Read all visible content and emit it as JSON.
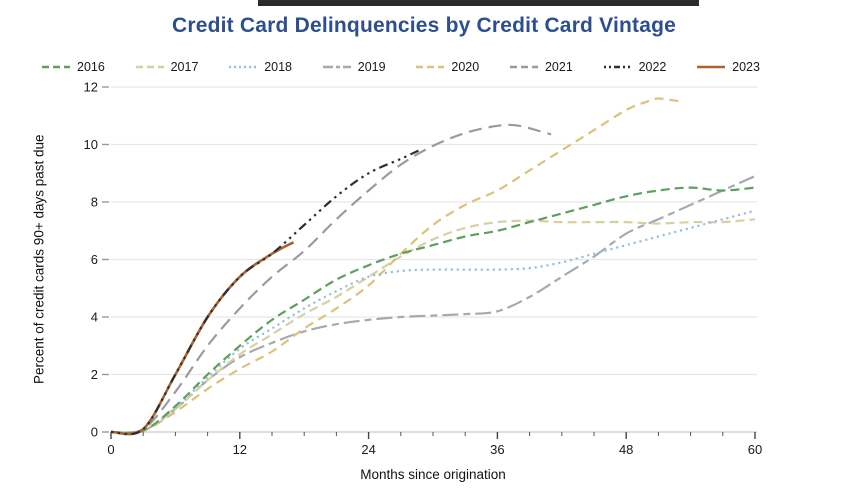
{
  "page": {
    "top_bar_color": "#2b2b2b",
    "background_color": "#ffffff",
    "title_color": "#2d4e8f"
  },
  "chart_data": {
    "type": "line",
    "title": "Credit Card Delinquencies by Credit Card Vintage",
    "xlabel": "Months since origination",
    "ylabel": "Percent of credit cards 90+ days past due",
    "xlim": [
      0,
      60
    ],
    "ylim": [
      0,
      12
    ],
    "x_ticks": [
      0,
      12,
      24,
      36,
      48,
      60
    ],
    "x_minor_tick_step": 3,
    "y_ticks": [
      0,
      2,
      4,
      6,
      8,
      10,
      12
    ],
    "grid": "horizontal",
    "gridline_color": "#e7e7e7",
    "axis_line_color": "#c9c9c9",
    "tick_color": "#555555",
    "tick_label_color": "#1a1a1a",
    "legend_position": "top",
    "paint_order": [
      "2019",
      "2017",
      "2020",
      "2018",
      "2016",
      "2021",
      "2023",
      "2022"
    ],
    "series": [
      {
        "name": "2016",
        "color": "#5da05d",
        "dash": "9 5",
        "width": 2.2,
        "legend_dash": "7 4",
        "points": [
          [
            0,
            0
          ],
          [
            3,
            0.05
          ],
          [
            6,
            0.9
          ],
          [
            9,
            2.0
          ],
          [
            12,
            3.0
          ],
          [
            15,
            3.9
          ],
          [
            18,
            4.6
          ],
          [
            21,
            5.3
          ],
          [
            24,
            5.8
          ],
          [
            27,
            6.2
          ],
          [
            30,
            6.5
          ],
          [
            33,
            6.8
          ],
          [
            36,
            7.0
          ],
          [
            39,
            7.3
          ],
          [
            42,
            7.6
          ],
          [
            45,
            7.9
          ],
          [
            48,
            8.2
          ],
          [
            51,
            8.4
          ],
          [
            54,
            8.5
          ],
          [
            57,
            8.4
          ],
          [
            60,
            8.5
          ]
        ]
      },
      {
        "name": "2017",
        "color": "#d8d09e",
        "dash": "9 5",
        "width": 2.2,
        "legend_dash": "7 4",
        "points": [
          [
            0,
            0
          ],
          [
            3,
            0.05
          ],
          [
            6,
            0.8
          ],
          [
            9,
            1.8
          ],
          [
            12,
            2.7
          ],
          [
            15,
            3.4
          ],
          [
            18,
            4.1
          ],
          [
            21,
            4.7
          ],
          [
            24,
            5.4
          ],
          [
            27,
            6.1
          ],
          [
            30,
            6.7
          ],
          [
            33,
            7.1
          ],
          [
            36,
            7.3
          ],
          [
            39,
            7.35
          ],
          [
            42,
            7.3
          ],
          [
            45,
            7.3
          ],
          [
            48,
            7.3
          ],
          [
            51,
            7.25
          ],
          [
            54,
            7.3
          ],
          [
            57,
            7.3
          ],
          [
            60,
            7.4
          ]
        ]
      },
      {
        "name": "2018",
        "color": "#94bfdd",
        "dash": "2.2 3.8",
        "width": 2.2,
        "legend_dash": "2 3",
        "points": [
          [
            0,
            0
          ],
          [
            3,
            0.05
          ],
          [
            6,
            0.85
          ],
          [
            9,
            1.9
          ],
          [
            12,
            2.9
          ],
          [
            15,
            3.6
          ],
          [
            18,
            4.3
          ],
          [
            21,
            4.9
          ],
          [
            24,
            5.4
          ],
          [
            27,
            5.6
          ],
          [
            30,
            5.65
          ],
          [
            33,
            5.65
          ],
          [
            36,
            5.65
          ],
          [
            39,
            5.7
          ],
          [
            42,
            5.9
          ],
          [
            45,
            6.2
          ],
          [
            48,
            6.5
          ],
          [
            51,
            6.8
          ],
          [
            54,
            7.1
          ],
          [
            57,
            7.4
          ],
          [
            60,
            7.7
          ]
        ]
      },
      {
        "name": "2019",
        "color": "#a8a8b2",
        "dash": "16 5 7 5",
        "width": 2.2,
        "legend_dash": "10 3 4 3",
        "points": [
          [
            0,
            0
          ],
          [
            3,
            0.05
          ],
          [
            6,
            0.8
          ],
          [
            9,
            1.8
          ],
          [
            12,
            2.6
          ],
          [
            15,
            3.1
          ],
          [
            18,
            3.5
          ],
          [
            21,
            3.75
          ],
          [
            24,
            3.9
          ],
          [
            27,
            4.0
          ],
          [
            30,
            4.05
          ],
          [
            33,
            4.1
          ],
          [
            36,
            4.2
          ],
          [
            39,
            4.7
          ],
          [
            42,
            5.4
          ],
          [
            45,
            6.1
          ],
          [
            48,
            6.9
          ],
          [
            51,
            7.4
          ],
          [
            54,
            7.9
          ],
          [
            57,
            8.4
          ],
          [
            60,
            8.9
          ]
        ]
      },
      {
        "name": "2020",
        "color": "#ddc178",
        "dash": "9 6",
        "width": 2.2,
        "legend_dash": "7 4",
        "points": [
          [
            0,
            0
          ],
          [
            3,
            0.05
          ],
          [
            6,
            0.7
          ],
          [
            9,
            1.5
          ],
          [
            12,
            2.2
          ],
          [
            15,
            2.8
          ],
          [
            18,
            3.6
          ],
          [
            21,
            4.3
          ],
          [
            24,
            5.1
          ],
          [
            27,
            6.2
          ],
          [
            30,
            7.2
          ],
          [
            33,
            7.9
          ],
          [
            36,
            8.4
          ],
          [
            39,
            9.1
          ],
          [
            42,
            9.8
          ],
          [
            45,
            10.5
          ],
          [
            48,
            11.2
          ],
          [
            50,
            11.5
          ],
          [
            51,
            11.6
          ],
          [
            53,
            11.5
          ]
        ]
      },
      {
        "name": "2021",
        "color": "#9a9aa4",
        "dash": "13 7",
        "width": 2.2,
        "legend_dash": "7 4",
        "points": [
          [
            0,
            0
          ],
          [
            3,
            0.1
          ],
          [
            6,
            1.4
          ],
          [
            9,
            3.0
          ],
          [
            12,
            4.3
          ],
          [
            15,
            5.4
          ],
          [
            18,
            6.3
          ],
          [
            21,
            7.4
          ],
          [
            24,
            8.4
          ],
          [
            27,
            9.3
          ],
          [
            30,
            9.95
          ],
          [
            33,
            10.4
          ],
          [
            36,
            10.65
          ],
          [
            38,
            10.65
          ],
          [
            41,
            10.35
          ]
        ]
      },
      {
        "name": "2022",
        "color": "#2e2e2e",
        "dash": "2.4 4.4 2.4 4.4 2.4 4.4 9 4.4",
        "width": 2.2,
        "legend_dash": "2 3 2 3 6 3",
        "points": [
          [
            0,
            0
          ],
          [
            3,
            0.1
          ],
          [
            6,
            2.0
          ],
          [
            9,
            4.0
          ],
          [
            12,
            5.4
          ],
          [
            15,
            6.2
          ],
          [
            18,
            7.2
          ],
          [
            21,
            8.2
          ],
          [
            24,
            9.0
          ],
          [
            27,
            9.5
          ],
          [
            29,
            9.85
          ]
        ]
      },
      {
        "name": "2023",
        "color": "#a9632f",
        "dash": "",
        "width": 2.6,
        "legend_dash": "",
        "points": [
          [
            0,
            0
          ],
          [
            3,
            0.1
          ],
          [
            6,
            2.0
          ],
          [
            9,
            4.0
          ],
          [
            12,
            5.4
          ],
          [
            15,
            6.2
          ],
          [
            17,
            6.6
          ]
        ]
      }
    ]
  }
}
